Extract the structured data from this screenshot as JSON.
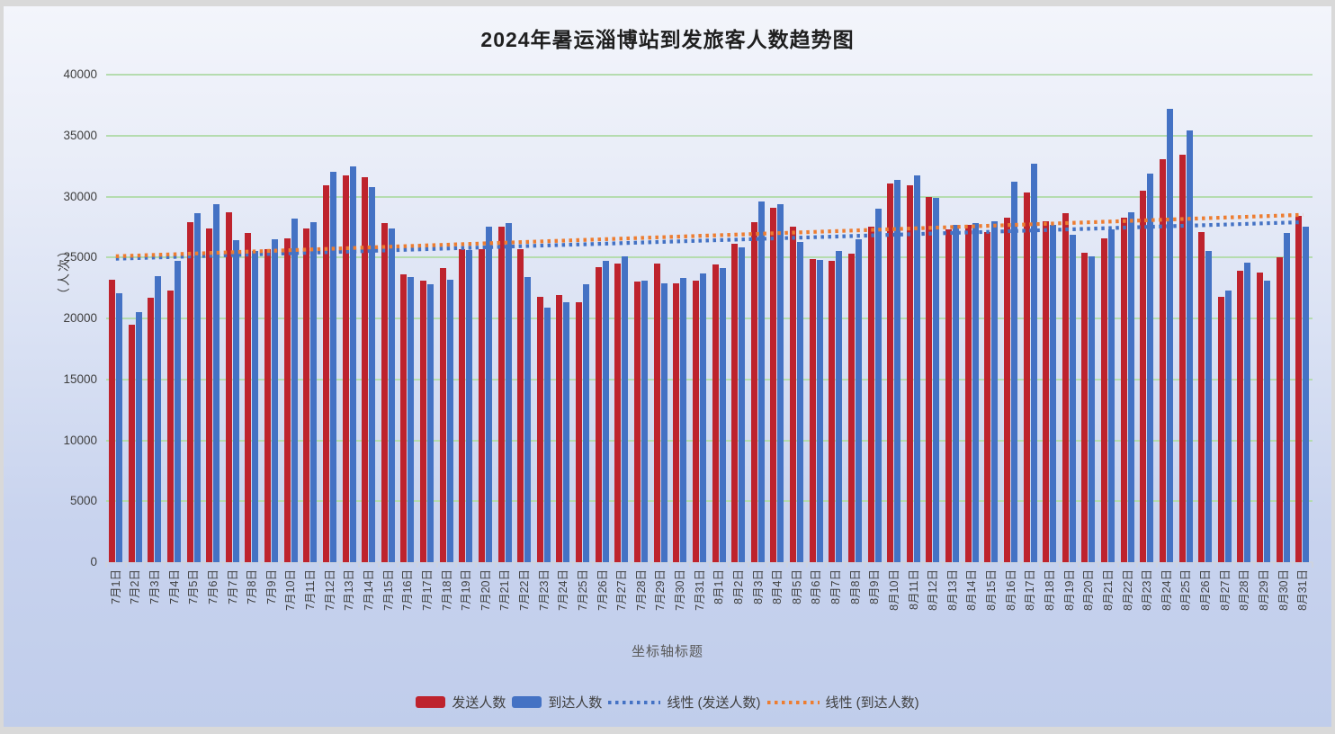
{
  "title": "2024年暑运淄博站到发旅客人数趋势图",
  "y_axis": {
    "title": "（人次）",
    "min": 0,
    "max": 40000,
    "step": 5000,
    "tick_labels": [
      "0",
      "5000",
      "10000",
      "15000",
      "20000",
      "25000",
      "30000",
      "35000",
      "40000"
    ]
  },
  "x_axis": {
    "title": "坐标轴标题"
  },
  "legend": {
    "items": [
      {
        "label": "发送人数",
        "type": "bar",
        "color": "#be232d"
      },
      {
        "label": "到达人数",
        "type": "bar",
        "color": "#4472c4"
      },
      {
        "label": "线性 (发送人数)",
        "type": "dotted-line",
        "color": "#4472c4"
      },
      {
        "label": "线性 (到达人数)",
        "type": "dotted-line",
        "color": "#ed7d31"
      }
    ]
  },
  "colors": {
    "sent_bar": "#be232d",
    "arrived_bar": "#4472c4",
    "sent_trend": "#4472c4",
    "arrived_trend": "#ed7d31",
    "gridline": "#b5dcaf",
    "axis": "#cdd3e0",
    "tick_text": "#3f3f3f"
  },
  "chart_data": {
    "type": "bar",
    "title": "2024年暑运淄博站到发旅客人数趋势图",
    "xlabel": "坐标轴标题",
    "ylabel": "（人次）",
    "ylim": [
      0,
      40000
    ],
    "ytick_step": 5000,
    "grid": true,
    "legend_position": "bottom",
    "categories": [
      "7月1日",
      "7月2日",
      "7月3日",
      "7月4日",
      "7月5日",
      "7月6日",
      "7月7日",
      "7月8日",
      "7月9日",
      "7月10日",
      "7月11日",
      "7月12日",
      "7月13日",
      "7月14日",
      "7月15日",
      "7月16日",
      "7月17日",
      "7月18日",
      "7月19日",
      "7月20日",
      "7月21日",
      "7月22日",
      "7月23日",
      "7月24日",
      "7月25日",
      "7月26日",
      "7月27日",
      "7月28日",
      "7月29日",
      "7月30日",
      "7月31日",
      "8月1日",
      "8月2日",
      "8月3日",
      "8月4日",
      "8月5日",
      "8月6日",
      "8月7日",
      "8月8日",
      "8月9日",
      "8月10日",
      "8月11日",
      "8月12日",
      "8月13日",
      "8月14日",
      "8月15日",
      "8月16日",
      "8月17日",
      "8月18日",
      "8月19日",
      "8月20日",
      "8月21日",
      "8月22日",
      "8月23日",
      "8月24日",
      "8月25日",
      "8月26日",
      "8月27日",
      "8月28日",
      "8月29日",
      "8月30日",
      "8月31日"
    ],
    "series": [
      {
        "name": "发送人数",
        "color": "#be232d",
        "values": [
          23200,
          19500,
          21700,
          22300,
          27900,
          27400,
          28700,
          27000,
          25700,
          26600,
          27400,
          30900,
          31700,
          31600,
          27800,
          23600,
          23100,
          24100,
          25700,
          25700,
          27500,
          25700,
          21800,
          21900,
          21300,
          24200,
          24500,
          23000,
          24500,
          22900,
          23100,
          24400,
          26100,
          27900,
          29100,
          27500,
          24900,
          24700,
          25300,
          27500,
          31100,
          30900,
          30000,
          27300,
          27700,
          27100,
          28300,
          30300,
          28000,
          28600,
          25400,
          26600,
          28300,
          30500,
          33100,
          33400,
          27100,
          21800,
          23900,
          23800,
          25000,
          28400
        ]
      },
      {
        "name": "到达人数",
        "color": "#4472c4",
        "values": [
          22100,
          20500,
          23500,
          24700,
          28600,
          29400,
          26400,
          25500,
          26500,
          28200,
          27900,
          32000,
          32500,
          30800,
          27400,
          23400,
          22800,
          23200,
          25600,
          27500,
          27800,
          23400,
          20900,
          21300,
          22800,
          24700,
          25100,
          23100,
          22900,
          23300,
          23700,
          24100,
          25800,
          29600,
          29400,
          26300,
          24800,
          25500,
          26500,
          29000,
          31400,
          31700,
          29900,
          27700,
          27800,
          28000,
          31200,
          32700,
          27700,
          26900,
          25100,
          27300,
          28700,
          31900,
          37200,
          35400,
          25500,
          22300,
          24600,
          23100,
          27000,
          27500
        ]
      }
    ],
    "trendlines": [
      {
        "name": "线性 (发送人数)",
        "for_series": "发送人数",
        "color": "#4472c4",
        "start_value": 24900,
        "end_value": 27900
      },
      {
        "name": "线性 (到达人数)",
        "for_series": "到达人数",
        "color": "#ed7d31",
        "start_value": 25100,
        "end_value": 28500
      }
    ]
  }
}
